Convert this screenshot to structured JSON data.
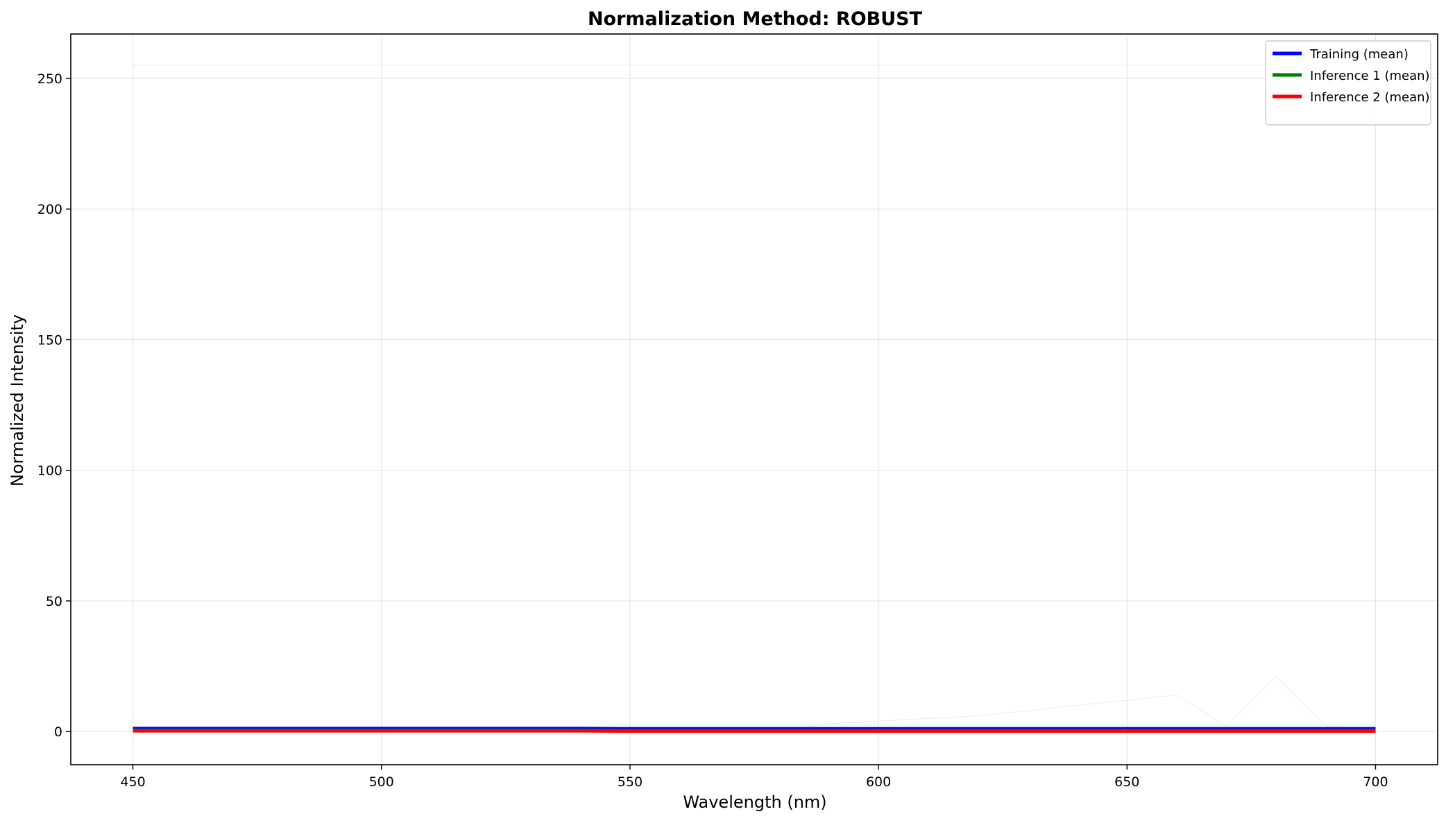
{
  "chart_data": {
    "type": "line",
    "title": "Normalization Method: ROBUST",
    "xlabel": "Wavelength (nm)",
    "ylabel": "Normalized Intensity",
    "xlim": [
      437.5,
      712.5
    ],
    "ylim": [
      -12.7,
      267
    ],
    "xticks": [
      450,
      500,
      550,
      600,
      650,
      700
    ],
    "yticks": [
      0,
      50,
      100,
      150,
      200,
      250
    ],
    "grid": true,
    "legend_position": "top-right",
    "x": [
      450,
      460,
      470,
      480,
      490,
      500,
      510,
      520,
      530,
      540,
      550,
      560,
      570,
      580,
      590,
      600,
      610,
      620,
      630,
      640,
      650,
      660,
      670,
      680,
      690,
      700
    ],
    "series": [
      {
        "name": "Training (mean)",
        "color": "#0000ff",
        "values": [
          1.2,
          1.2,
          1.2,
          1.2,
          1.2,
          1.2,
          1.2,
          1.2,
          1.2,
          1.2,
          1.1,
          1.1,
          1.1,
          1.1,
          1.1,
          1.1,
          1.1,
          1.1,
          1.1,
          1.1,
          1.1,
          1.1,
          1.1,
          1.1,
          1.1,
          1.1
        ]
      },
      {
        "name": "Inference 1 (mean)",
        "color": "#008000",
        "values": [
          0.5,
          0.5,
          0.5,
          0.5,
          0.5,
          0.5,
          0.5,
          0.5,
          0.5,
          0.5,
          0.4,
          0.4,
          0.4,
          0.4,
          0.4,
          0.4,
          0.4,
          0.4,
          0.4,
          0.4,
          0.4,
          0.4,
          0.4,
          0.4,
          0.4,
          0.4
        ]
      },
      {
        "name": "Inference 2 (mean)",
        "color": "#ff0000",
        "values": [
          0.2,
          0.2,
          0.2,
          0.2,
          0.2,
          0.2,
          0.2,
          0.2,
          0.2,
          0.2,
          0.1,
          0.1,
          0.1,
          0.1,
          0.1,
          0.1,
          0.1,
          0.1,
          0.1,
          0.1,
          0.1,
          0.1,
          0.1,
          0.1,
          0.1,
          0.1
        ]
      }
    ],
    "faint_series": [
      {
        "color": "#dddddd",
        "values": [
          255,
          255,
          255,
          255,
          255,
          255,
          255,
          255,
          255,
          255,
          255,
          255,
          255,
          255,
          255,
          255,
          255,
          255,
          255,
          255,
          255,
          255,
          255,
          255,
          255,
          255
        ]
      },
      {
        "color": "#dddddd",
        "values": [
          0,
          0,
          0,
          0,
          0,
          0,
          0,
          0,
          0,
          0,
          0,
          0,
          0,
          0,
          3,
          4,
          5,
          6,
          8,
          10,
          12,
          14,
          2,
          21,
          2,
          1
        ]
      }
    ]
  }
}
